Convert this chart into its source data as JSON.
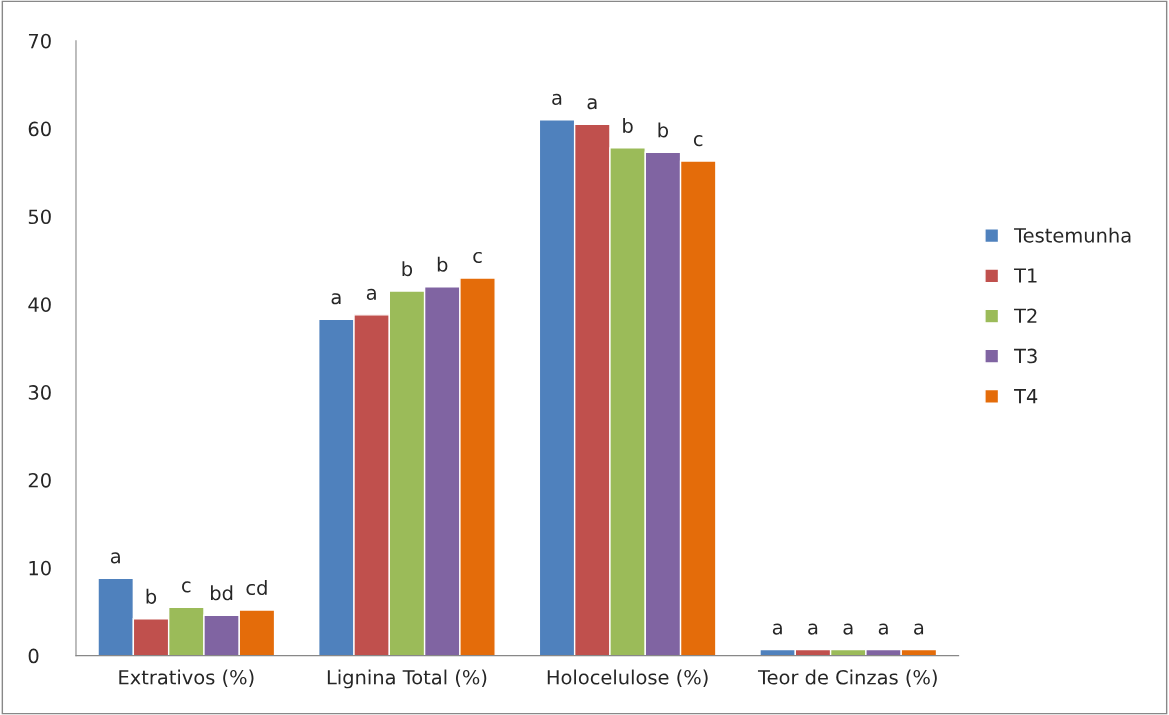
{
  "chart_data": {
    "type": "bar",
    "categories": [
      "Extrativos (%)",
      "Lignina Total (%)",
      "Holocelulose (%)",
      "Teor de Cinzas (%)"
    ],
    "series": [
      {
        "name": "Testemunha",
        "color": "#4f81bd",
        "values": [
          8.8,
          38.3,
          61.0,
          0.7
        ],
        "value_labels": [
          "a",
          "a",
          "a",
          "a"
        ]
      },
      {
        "name": "T1",
        "color": "#c0504d",
        "values": [
          4.2,
          38.8,
          60.5,
          0.7
        ],
        "value_labels": [
          "b",
          "a",
          "a",
          "a"
        ]
      },
      {
        "name": "T2",
        "color": "#9bbb59",
        "values": [
          5.5,
          41.5,
          57.8,
          0.7
        ],
        "value_labels": [
          "c",
          "b",
          "b",
          "a"
        ]
      },
      {
        "name": "T3",
        "color": "#8064a2",
        "values": [
          4.6,
          42.0,
          57.3,
          0.7
        ],
        "value_labels": [
          "bd",
          "b",
          "b",
          "a"
        ]
      },
      {
        "name": "T4",
        "color": "#e46c0a",
        "values": [
          5.2,
          43.0,
          56.3,
          0.7
        ],
        "value_labels": [
          "cd",
          "c",
          "c",
          "a"
        ]
      }
    ],
    "ylim": [
      0,
      70
    ],
    "yticks": [
      0,
      10,
      20,
      30,
      40,
      50,
      60,
      70
    ],
    "grid": false,
    "legend": "right"
  }
}
